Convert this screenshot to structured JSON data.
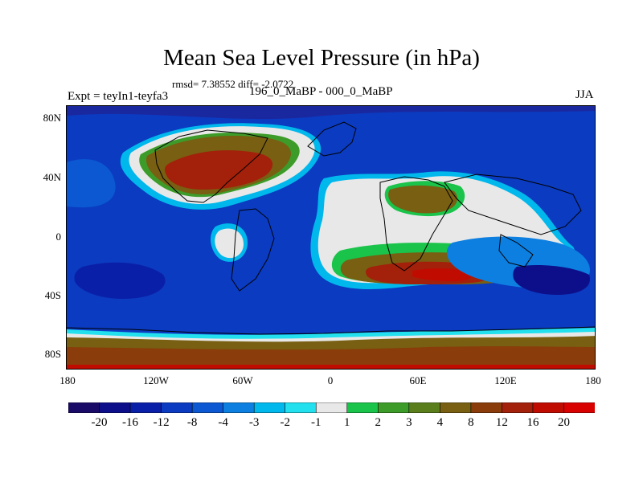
{
  "title": "Mean Sea Level Pressure (in hPa)",
  "stats": "rmsd= 7.38552 diff= -2.0722",
  "experiment": "Expt = teyIn1-teyfa3",
  "subtitle": "196_0_MaBP - 000_0_MaBP",
  "season": "JJA",
  "map": {
    "lat_labels": [
      "80N",
      "40N",
      "0",
      "40S",
      "80S"
    ],
    "lon_labels": [
      "180",
      "120W",
      "60W",
      "0",
      "60E",
      "120E",
      "180"
    ]
  },
  "colorbar": {
    "labels": [
      "-20",
      "-16",
      "-12",
      "-8",
      "-4",
      "-3",
      "-2",
      "-1",
      "1",
      "2",
      "3",
      "4",
      "8",
      "12",
      "16",
      "20"
    ],
    "colors": [
      "#1a0a68",
      "#0d0f8a",
      "#0a1fa8",
      "#0b3bc0",
      "#0b58d2",
      "#0c7fe0",
      "#00b8ec",
      "#22e0ee",
      "#e8e8e8",
      "#1ac34a",
      "#3d9c29",
      "#5b7e1c",
      "#785f12",
      "#8a3d0a",
      "#a3200a",
      "#c00c00",
      "#d90000"
    ]
  }
}
